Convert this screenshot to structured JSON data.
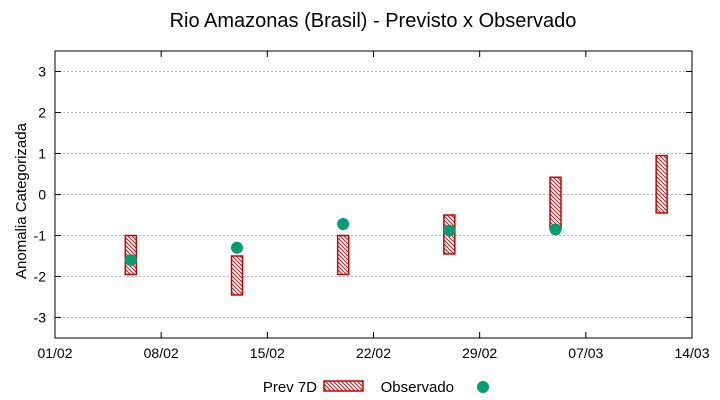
{
  "chart_data": {
    "type": "floating-bar+scatter",
    "title": "Rio Amazonas (Brasil) - Previsto x Observado",
    "ylabel": "Anomalia Categorizada",
    "xlabel": "",
    "ylim": [
      -3.5,
      3.5
    ],
    "yticks": [
      -3,
      -2,
      -1,
      0,
      1,
      2,
      3
    ],
    "xticks": [
      "01/02",
      "08/02",
      "15/02",
      "22/02",
      "29/02",
      "07/03",
      "14/03"
    ],
    "xlim_days": [
      0,
      42
    ],
    "grid": true,
    "legend": {
      "position": "bottom-center",
      "forecast_label": "Prev 7D",
      "observed_label": "Observado"
    },
    "colors": {
      "forecast": "#cc0000",
      "observed": "#009e73"
    },
    "series": [
      {
        "name": "Prev 7D",
        "kind": "range",
        "points": [
          {
            "day": 5,
            "low": -1.95,
            "high": -1.0
          },
          {
            "day": 12,
            "low": -2.45,
            "high": -1.5
          },
          {
            "day": 19,
            "low": -1.95,
            "high": -1.0
          },
          {
            "day": 26,
            "low": -1.45,
            "high": -0.5
          },
          {
            "day": 33,
            "low": -0.85,
            "high": 0.42
          },
          {
            "day": 40,
            "low": -0.45,
            "high": 0.95
          }
        ]
      },
      {
        "name": "Observado",
        "kind": "point",
        "points": [
          {
            "day": 5,
            "value": -1.6
          },
          {
            "day": 12,
            "value": -1.3
          },
          {
            "day": 19,
            "value": -0.72
          },
          {
            "day": 26,
            "value": -0.88
          },
          {
            "day": 33,
            "value": -0.85
          }
        ]
      }
    ]
  }
}
